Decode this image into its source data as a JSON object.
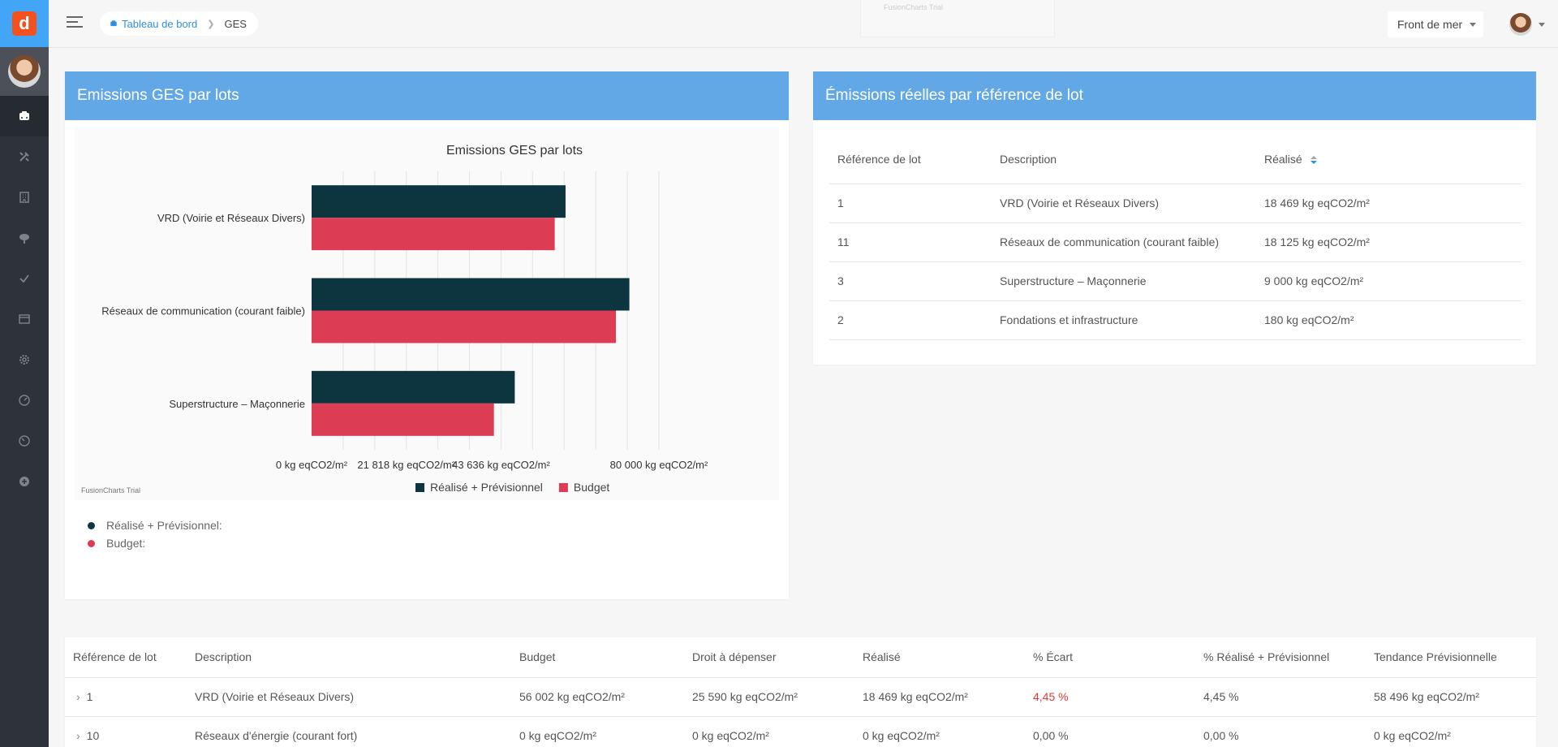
{
  "app": {
    "logo_letter": "d"
  },
  "breadcrumb": {
    "home": "Tableau de bord",
    "current": "GES"
  },
  "topbar": {
    "trial_text": "FusionCharts Trial",
    "project": "Front de mer"
  },
  "chart_card": {
    "title": "Emissions GES par lots"
  },
  "chart_data": {
    "type": "bar",
    "orientation": "horizontal",
    "title": "Emissions GES par lots",
    "categories": [
      "VRD (Voirie et Réseaux Divers)",
      "Réseaux de communication (courant faible)",
      "Superstructure – Maçonnerie"
    ],
    "series": [
      {
        "name": "Réalisé + Prévisionnel",
        "color": "#0d3540",
        "values": [
          58496,
          73200,
          46800
        ]
      },
      {
        "name": "Budget",
        "color": "#dc3d54",
        "values": [
          56002,
          70100,
          42000
        ]
      }
    ],
    "xlim": [
      0,
      80000
    ],
    "tick_values": [
      0,
      21818,
      43636,
      80000
    ],
    "tick_labels": [
      "0 kg eqCO2/m²",
      "21 818 kg eqCO2/m²",
      "43 636 kg eqCO2/m²",
      "80 000 kg eqCO2/m²"
    ],
    "legend": "bottom",
    "trial_label": "FusionCharts Trial",
    "grid": true
  },
  "chart_status": [
    {
      "label": "Réalisé + Prévisionnel:",
      "color": "#0d3540"
    },
    {
      "label": "Budget:",
      "color": "#dc3d54"
    }
  ],
  "ref_card": {
    "title": "Émissions réelles par référence de lot",
    "headers": [
      "Référence de lot",
      "Description",
      "Réalisé"
    ],
    "rows": [
      [
        "1",
        "VRD (Voirie et Réseaux Divers)",
        "18 469 kg eqCO2/m²"
      ],
      [
        "11",
        "Réseaux de communication (courant faible)",
        "18 125 kg eqCO2/m²"
      ],
      [
        "3",
        "Superstructure – Maçonnerie",
        "9 000 kg eqCO2/m²"
      ],
      [
        "2",
        "Fondations et infrastructure",
        "180 kg eqCO2/m²"
      ]
    ]
  },
  "main_table": {
    "headers": [
      "Référence de lot",
      "Description",
      "Budget",
      "Droit à dépenser",
      "Réalisé",
      "% Écart",
      "% Réalisé + Prévisionnel",
      "Tendance Prévisionnelle"
    ],
    "rows": [
      [
        "1",
        "VRD (Voirie et Réseaux Divers)",
        "56 002 kg eqCO2/m²",
        "25 590 kg eqCO2/m²",
        "18 469 kg eqCO2/m²",
        "4,45 %",
        "4,45 %",
        "58 496 kg eqCO2/m²"
      ],
      [
        "10",
        "Réseaux d'énergie (courant fort)",
        "0 kg eqCO2/m²",
        "0 kg eqCO2/m²",
        "0 kg eqCO2/m²",
        "0,00 %",
        "0,00 %",
        "0 kg eqCO2/m²"
      ]
    ],
    "negative_color": "#e53935"
  }
}
